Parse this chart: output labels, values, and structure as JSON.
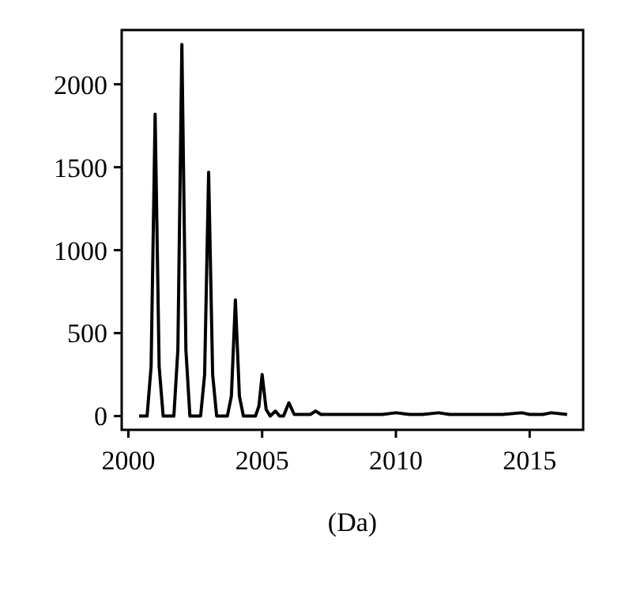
{
  "chart_data": {
    "type": "line",
    "xlabel": "(Da)",
    "x": [
      2000.4,
      2000.7,
      2000.85,
      2001,
      2001.15,
      2001.3,
      2001.7,
      2001.85,
      2002,
      2002.15,
      2002.3,
      2002.7,
      2002.85,
      2003,
      2003.15,
      2003.3,
      2003.7,
      2003.85,
      2004,
      2004.15,
      2004.3,
      2004.75,
      2004.88,
      2005,
      2005.15,
      2005.3,
      2005.5,
      2005.65,
      2005.8,
      2006,
      2006.2,
      2006.8,
      2007,
      2007.2,
      2008,
      2008.5,
      2009,
      2009.5,
      2010,
      2010.5,
      2011,
      2011.6,
      2012,
      2012.5,
      2013,
      2013.5,
      2014,
      2014.7,
      2015,
      2015.5,
      2015.8,
      2016.4
    ],
    "series": [
      {
        "color": "#000000",
        "values": [
          0,
          0,
          300,
          1820,
          300,
          0,
          0,
          400,
          2240,
          400,
          0,
          0,
          250,
          1470,
          250,
          0,
          0,
          120,
          700,
          120,
          0,
          0,
          60,
          250,
          40,
          0,
          30,
          0,
          0,
          80,
          10,
          10,
          30,
          10,
          10,
          10,
          10,
          10,
          20,
          10,
          10,
          20,
          10,
          10,
          10,
          10,
          10,
          20,
          10,
          10,
          20,
          10
        ]
      }
    ],
    "xlim": [
      1999.75,
      2017
    ],
    "ylim": [
      -83,
      2327
    ],
    "xticks": [
      2000,
      2005,
      2010,
      2015
    ],
    "yticks": [
      0,
      500,
      1000,
      1500,
      2000
    ],
    "grid": false,
    "marker": "none",
    "line_style": "solid"
  }
}
